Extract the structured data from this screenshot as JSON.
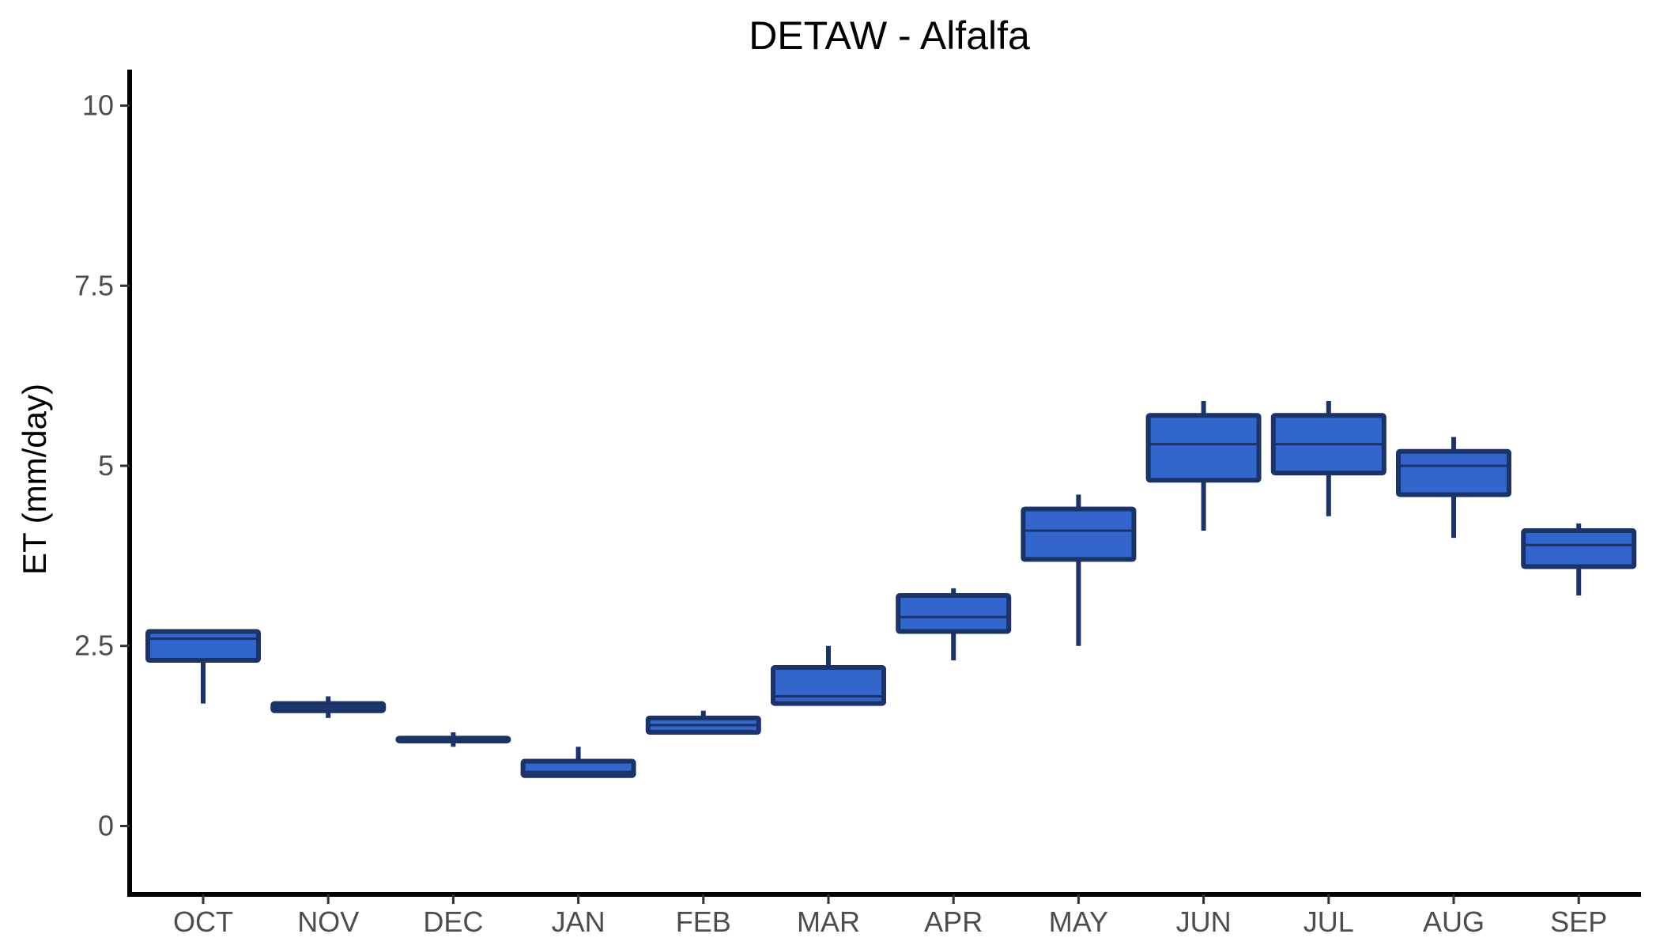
{
  "chart_data": {
    "type": "box",
    "title": "DETAW - Alfalfa",
    "xlabel": "",
    "ylabel": "ET (mm/day)",
    "ylim": [
      -0.95,
      10.5
    ],
    "yticks": [
      0,
      2.5,
      5,
      7.5,
      10
    ],
    "ytick_labels": [
      "0",
      "2.5",
      "5",
      "7.5",
      "10"
    ],
    "grid": false,
    "legend": "none",
    "categories": [
      "OCT",
      "NOV",
      "DEC",
      "JAN",
      "FEB",
      "MAR",
      "APR",
      "MAY",
      "JUN",
      "JUL",
      "AUG",
      "SEP"
    ],
    "boxes": [
      {
        "min": 1.7,
        "q1": 2.3,
        "median": 2.6,
        "q3": 2.7,
        "max": 2.7
      },
      {
        "min": 1.5,
        "q1": 1.6,
        "median": 1.65,
        "q3": 1.7,
        "max": 1.8
      },
      {
        "min": 1.1,
        "q1": 1.18,
        "median": 1.2,
        "q3": 1.22,
        "max": 1.3
      },
      {
        "min": 0.7,
        "q1": 0.7,
        "median": 0.75,
        "q3": 0.9,
        "max": 1.1
      },
      {
        "min": 1.3,
        "q1": 1.3,
        "median": 1.4,
        "q3": 1.5,
        "max": 1.6
      },
      {
        "min": 1.7,
        "q1": 1.7,
        "median": 1.8,
        "q3": 2.2,
        "max": 2.5
      },
      {
        "min": 2.3,
        "q1": 2.7,
        "median": 2.9,
        "q3": 3.2,
        "max": 3.3
      },
      {
        "min": 2.5,
        "q1": 3.7,
        "median": 4.1,
        "q3": 4.4,
        "max": 4.6
      },
      {
        "min": 4.1,
        "q1": 4.8,
        "median": 5.3,
        "q3": 5.7,
        "max": 5.9
      },
      {
        "min": 4.3,
        "q1": 4.9,
        "median": 5.3,
        "q3": 5.7,
        "max": 5.9
      },
      {
        "min": 4.0,
        "q1": 4.6,
        "median": 5.0,
        "q3": 5.2,
        "max": 5.4
      },
      {
        "min": 3.2,
        "q1": 3.6,
        "median": 3.9,
        "q3": 4.1,
        "max": 4.2
      }
    ],
    "colors": {
      "box_fill": "#3366cc",
      "box_stroke": "#1b3366",
      "axis": "#000000",
      "tick_text": "#4d4d4d"
    }
  }
}
